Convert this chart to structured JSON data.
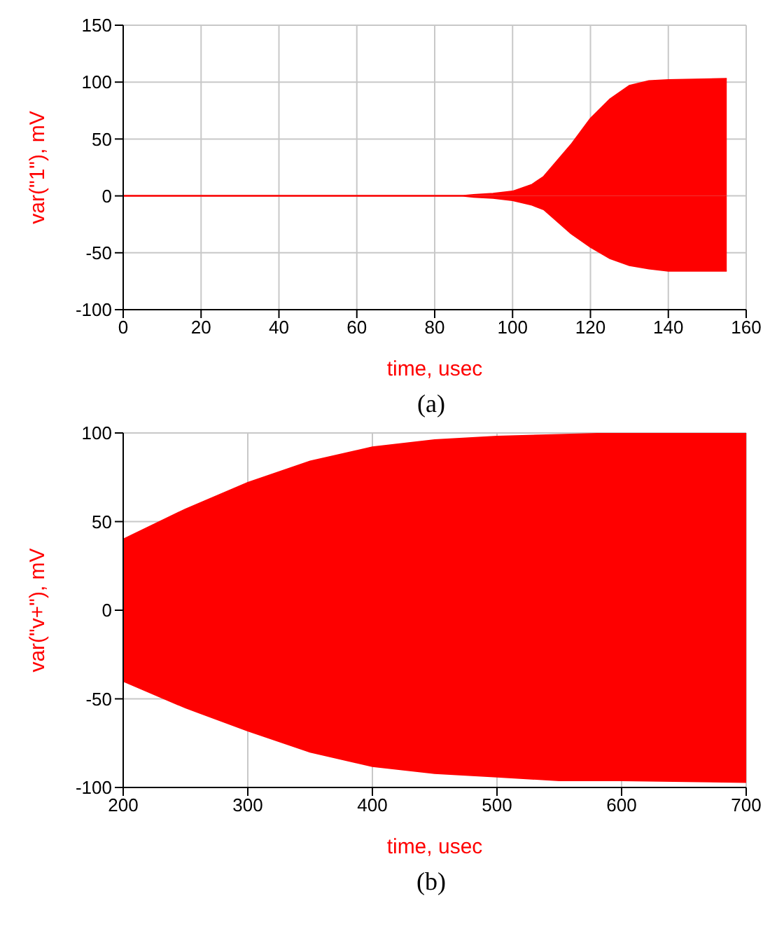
{
  "chart_data": [
    {
      "type": "area",
      "xlabel": "time, usec",
      "ylabel": "var(\"1\"), mV",
      "xlim": [
        0,
        160
      ],
      "xticks": [
        0,
        20,
        40,
        60,
        80,
        100,
        120,
        140,
        160
      ],
      "ylim": [
        -100,
        150
      ],
      "yticks": [
        -100,
        -50,
        0,
        50,
        100,
        150
      ],
      "grid": true,
      "legend": false,
      "annotations": [
        "(a)"
      ],
      "series": [
        {
          "color": "#ff0000",
          "x": [
            0,
            87,
            90,
            95,
            100,
            105,
            108,
            110,
            115,
            120,
            125,
            130,
            135,
            140,
            155
          ],
          "values": [
            0,
            0,
            1,
            2,
            4,
            10,
            17,
            25,
            45,
            68,
            85,
            97,
            101,
            102,
            103
          ]
        },
        {
          "color": "#fe0000",
          "x": [
            0,
            87,
            90,
            95,
            100,
            105,
            108,
            110,
            115,
            120,
            125,
            130,
            135,
            140,
            155
          ],
          "values": [
            0,
            0,
            -1,
            -2,
            -4,
            -8,
            -12,
            -18,
            -33,
            -45,
            -55,
            -61,
            -64,
            -66,
            -66
          ]
        }
      ]
    },
    {
      "type": "area",
      "xlabel": "time, usec",
      "ylabel": "var(\"v+\"), mV",
      "xlim": [
        200,
        700
      ],
      "xticks": [
        200,
        300,
        400,
        500,
        600,
        700
      ],
      "ylim": [
        -100,
        100
      ],
      "yticks": [
        -100,
        -50,
        0,
        50,
        100
      ],
      "grid": true,
      "legend": false,
      "annotations": [
        "(b)"
      ],
      "series": [
        {
          "color": "#ff0000",
          "x": [
            200,
            250,
            300,
            350,
            400,
            450,
            500,
            550,
            600,
            700
          ],
          "values": [
            40,
            57,
            72,
            84,
            92,
            96,
            98,
            99,
            100,
            100
          ]
        },
        {
          "color": "#fe0000",
          "x": [
            200,
            250,
            300,
            350,
            400,
            450,
            500,
            550,
            600,
            700
          ],
          "values": [
            -40,
            -55,
            -68,
            -80,
            -88,
            -92,
            -94,
            -96,
            -96,
            -97
          ]
        }
      ]
    }
  ]
}
